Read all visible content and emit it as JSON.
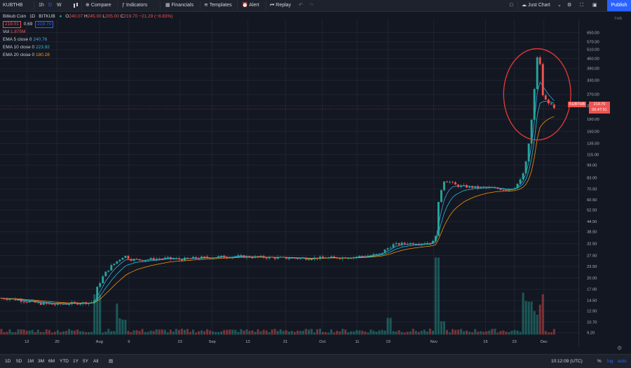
{
  "toolbar": {
    "symbol": "KUBTHB",
    "intervals": [
      "1h",
      "D",
      "W"
    ],
    "compare": "Compare",
    "indicators": "Indicators",
    "financials": "Financials",
    "templates": "Templates",
    "alert": "Alert",
    "replay": "Replay",
    "layout": "Just Chart",
    "publish": "Publish"
  },
  "legend": {
    "name": "Bitkub Coin",
    "interval": "1D",
    "exchange": "BITKUB",
    "o_label": "O",
    "o": "240.07",
    "h_label": "H",
    "h": "245.00",
    "l_label": "L",
    "l": "205.00",
    "c_label": "C",
    "c": "219.70",
    "change": "−21.29 (−8.83%)",
    "bid": "219.01",
    "spread": "0.69",
    "ask": "219.70",
    "vol_label": "Vol",
    "vol": "1.875M",
    "ema5_label": "EMA 5 close 0",
    "ema5": "240.76",
    "ema10_label": "EMA 10 close 0",
    "ema10": "223.92",
    "ema20_label": "EMA 20 close 0",
    "ema20": "180.28"
  },
  "price_axis": {
    "currency": "THB",
    "labels": [
      "650.00",
      "570.00",
      "510.00",
      "450.00",
      "390.00",
      "330.00",
      "270.00",
      "230.00",
      "190.00",
      "160.00",
      "135.00",
      "115.00",
      "99.00",
      "83.00",
      "70.50",
      "60.50",
      "52.50",
      "44.50",
      "38.50",
      "32.50",
      "27.50",
      "23.50",
      "20.00",
      "17.00",
      "14.50",
      "12.50",
      "10.70",
      "9.20"
    ]
  },
  "price_label": {
    "symbol": "KUBTHB",
    "price": "219.70",
    "countdown": "06:47:51"
  },
  "time_axis": [
    "12",
    "20",
    "Aug",
    "9",
    "23",
    "Sep",
    "13",
    "21",
    "Oct",
    "11",
    "19",
    "Nov",
    "15",
    "23",
    "Dec"
  ],
  "bottombar": {
    "ranges": [
      "1D",
      "5D",
      "1M",
      "3M",
      "6M",
      "YTD",
      "1Y",
      "5Y",
      "All"
    ],
    "clock": "10:12:09 (UTC)",
    "percent": "%",
    "log": "log",
    "auto": "auto"
  },
  "colors": {
    "up": "#26a69a",
    "down": "#ef5350",
    "ema5": "#42a5f5",
    "ema10": "#26c6da",
    "ema20": "#ff9800",
    "circle": "#e53935"
  }
}
